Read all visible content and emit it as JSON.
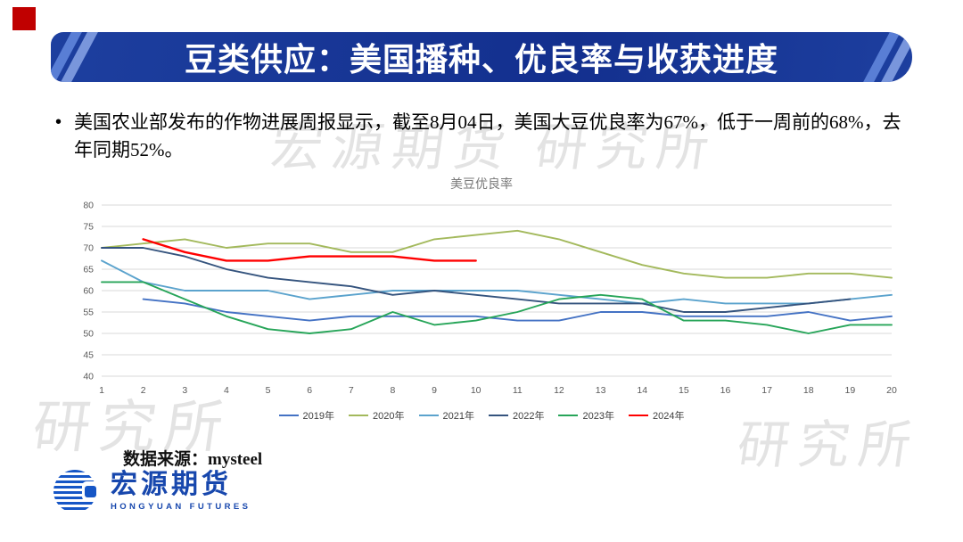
{
  "slide": {
    "title": "豆类供应：美国播种、优良率与收获进度",
    "bullet_marker": "•",
    "bullet": "美国农业部发布的作物进展周报显示，截至8月04日，美国大豆优良率为67%，低于一周前的68%，去年同期52%。",
    "source": "数据来源：mysteel",
    "watermark_center": "宏源期货 研究所",
    "watermark_corner": "研究所",
    "logo": {
      "cn": "宏源期货",
      "en": "HONGYUAN FUTURES"
    },
    "colors": {
      "banner_blue": "#16379b",
      "logo_blue": "#1747ad",
      "red_accent": "#c00000"
    }
  },
  "chart_data": {
    "type": "line",
    "title": "美豆优良率",
    "xlabel": "",
    "ylabel": "",
    "x": [
      1,
      2,
      3,
      4,
      5,
      6,
      7,
      8,
      9,
      10,
      11,
      12,
      13,
      14,
      15,
      16,
      17,
      18,
      19,
      20
    ],
    "ylim": [
      40,
      80
    ],
    "ytick_step": 5,
    "grid": true,
    "legend_position": "bottom",
    "series": [
      {
        "name": "2019年",
        "color": "#4472c4",
        "values": [
          null,
          58,
          57,
          55,
          54,
          53,
          54,
          54,
          54,
          54,
          53,
          53,
          55,
          55,
          54,
          54,
          54,
          55,
          53,
          54
        ]
      },
      {
        "name": "2020年",
        "color": "#a3b95c",
        "values": [
          70,
          71,
          72,
          70,
          71,
          71,
          69,
          69,
          72,
          73,
          74,
          72,
          69,
          66,
          64,
          63,
          63,
          64,
          64,
          63
        ]
      },
      {
        "name": "2021年",
        "color": "#5ba3cd",
        "values": [
          67,
          62,
          60,
          60,
          60,
          58,
          59,
          60,
          60,
          60,
          60,
          59,
          58,
          57,
          58,
          57,
          57,
          57,
          58,
          59
        ]
      },
      {
        "name": "2022年",
        "color": "#35547e",
        "values": [
          70,
          70,
          68,
          65,
          63,
          62,
          61,
          59,
          60,
          59,
          58,
          57,
          57,
          57,
          55,
          55,
          56,
          57,
          58,
          null
        ]
      },
      {
        "name": "2023年",
        "color": "#27a559",
        "values": [
          62,
          62,
          58,
          54,
          51,
          50,
          51,
          55,
          52,
          53,
          55,
          58,
          59,
          58,
          53,
          53,
          52,
          50,
          52,
          52
        ]
      },
      {
        "name": "2024年",
        "color": "#ff0000",
        "values": [
          null,
          72,
          69,
          67,
          67,
          68,
          68,
          68,
          67,
          67,
          null,
          null,
          null,
          null,
          null,
          null,
          null,
          null,
          null,
          null
        ]
      }
    ]
  }
}
